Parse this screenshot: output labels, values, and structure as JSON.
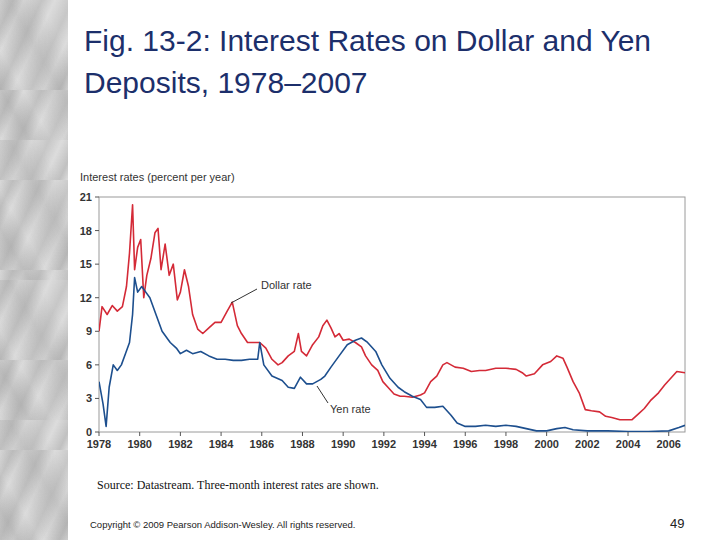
{
  "slide": {
    "title": "Fig. 13-2: Interest Rates on Dollar and Yen Deposits, 1978–2007",
    "source": "Source: Datastream. Three-month interest rates are shown.",
    "copyright": "Copyright © 2009 Pearson Addison-Wesley. All rights reserved.",
    "page_number": 49
  },
  "chart_data": {
    "type": "line",
    "y_label": "Interest rates (percent per year)",
    "xlim": [
      1978,
      2006.8
    ],
    "xticks": [
      1978,
      1980,
      1982,
      1984,
      1986,
      1988,
      1990,
      1992,
      1994,
      1996,
      1998,
      2000,
      2002,
      2004,
      2006
    ],
    "ylim": [
      0,
      21
    ],
    "yticks": [
      0,
      3,
      6,
      9,
      12,
      15,
      18,
      21
    ],
    "grid": false,
    "series": [
      {
        "name": "Dollar rate",
        "color": "#d42a37",
        "x": [
          1978.0,
          1978.15,
          1978.4,
          1978.65,
          1978.9,
          1979.15,
          1979.35,
          1979.5,
          1979.65,
          1979.75,
          1979.9,
          1980.05,
          1980.2,
          1980.35,
          1980.55,
          1980.75,
          1980.9,
          1981.05,
          1981.25,
          1981.45,
          1981.65,
          1981.85,
          1982.0,
          1982.2,
          1982.4,
          1982.6,
          1982.85,
          1983.1,
          1983.4,
          1983.7,
          1984.0,
          1984.3,
          1984.55,
          1984.8,
          1985.0,
          1985.3,
          1985.6,
          1985.9,
          1986.2,
          1986.5,
          1986.8,
          1987.0,
          1987.3,
          1987.6,
          1987.8,
          1987.95,
          1988.2,
          1988.5,
          1988.8,
          1989.0,
          1989.2,
          1989.4,
          1989.6,
          1989.8,
          1990.0,
          1990.3,
          1990.6,
          1990.9,
          1991.1,
          1991.4,
          1991.7,
          1991.95,
          1992.2,
          1992.5,
          1992.8,
          1993.0,
          1993.4,
          1993.8,
          1994.0,
          1994.3,
          1994.6,
          1994.9,
          1995.1,
          1995.5,
          1995.9,
          1996.3,
          1996.7,
          1997.0,
          1997.5,
          1998.0,
          1998.5,
          1998.8,
          1999.0,
          1999.4,
          1999.8,
          2000.2,
          2000.5,
          2000.8,
          2001.0,
          2001.3,
          2001.6,
          2001.9,
          2002.2,
          2002.6,
          2002.9,
          2003.2,
          2003.6,
          2003.9,
          2004.2,
          2004.5,
          2004.8,
          2005.1,
          2005.5,
          2005.8,
          2006.1,
          2006.4,
          2006.8
        ],
        "values": [
          9.0,
          11.2,
          10.5,
          11.3,
          10.8,
          11.2,
          13.0,
          16.0,
          20.3,
          14.5,
          16.5,
          17.2,
          12.0,
          14.0,
          15.5,
          17.8,
          18.2,
          14.5,
          16.8,
          14.0,
          15.0,
          11.8,
          12.5,
          14.5,
          13.0,
          10.5,
          9.2,
          8.8,
          9.3,
          9.8,
          9.8,
          10.8,
          11.6,
          9.5,
          8.8,
          8.0,
          8.0,
          8.0,
          7.5,
          6.5,
          6.0,
          6.2,
          6.8,
          7.2,
          8.8,
          7.2,
          6.8,
          7.8,
          8.5,
          9.5,
          10.0,
          9.3,
          8.5,
          8.8,
          8.2,
          8.3,
          8.0,
          7.6,
          6.8,
          6.0,
          5.5,
          4.5,
          4.0,
          3.4,
          3.2,
          3.2,
          3.1,
          3.3,
          3.5,
          4.5,
          5.0,
          6.0,
          6.2,
          5.8,
          5.7,
          5.4,
          5.5,
          5.5,
          5.7,
          5.7,
          5.6,
          5.3,
          5.0,
          5.2,
          6.0,
          6.3,
          6.8,
          6.6,
          5.8,
          4.5,
          3.5,
          2.0,
          1.9,
          1.8,
          1.4,
          1.3,
          1.1,
          1.1,
          1.1,
          1.6,
          2.1,
          2.8,
          3.5,
          4.2,
          4.8,
          5.4,
          5.3
        ]
      },
      {
        "name": "Yen rate",
        "color": "#1d4f8e",
        "x": [
          1978.0,
          1978.2,
          1978.35,
          1978.5,
          1978.7,
          1978.9,
          1979.1,
          1979.3,
          1979.5,
          1979.65,
          1979.75,
          1979.9,
          1980.1,
          1980.3,
          1980.5,
          1980.8,
          1981.1,
          1981.5,
          1981.8,
          1982.0,
          1982.3,
          1982.6,
          1983.0,
          1983.4,
          1983.8,
          1984.2,
          1984.6,
          1985.0,
          1985.4,
          1985.8,
          1985.9,
          1986.1,
          1986.5,
          1987.0,
          1987.3,
          1987.6,
          1987.9,
          1988.2,
          1988.5,
          1988.9,
          1989.1,
          1989.4,
          1989.8,
          1990.2,
          1990.6,
          1990.9,
          1991.2,
          1991.6,
          1991.9,
          1992.3,
          1992.7,
          1993.0,
          1993.4,
          1993.8,
          1994.1,
          1994.5,
          1994.9,
          1995.3,
          1995.6,
          1996.0,
          1996.5,
          1997.0,
          1997.5,
          1998.0,
          1998.5,
          1999.0,
          1999.5,
          2000.0,
          2000.5,
          2000.9,
          2001.3,
          2002.0,
          2003.0,
          2004.0,
          2005.0,
          2006.0,
          2006.5,
          2006.8
        ],
        "values": [
          4.5,
          2.5,
          0.5,
          4.0,
          6.0,
          5.5,
          6.0,
          7.0,
          8.0,
          10.5,
          13.8,
          12.5,
          13.0,
          12.5,
          12.0,
          10.5,
          9.0,
          8.0,
          7.5,
          7.0,
          7.3,
          7.0,
          7.2,
          6.8,
          6.5,
          6.5,
          6.4,
          6.4,
          6.5,
          6.5,
          8.0,
          6.0,
          5.0,
          4.6,
          4.0,
          3.9,
          4.9,
          4.3,
          4.3,
          4.7,
          5.0,
          5.8,
          6.8,
          7.8,
          8.2,
          8.4,
          8.0,
          7.2,
          6.0,
          4.8,
          4.0,
          3.6,
          3.2,
          2.9,
          2.2,
          2.2,
          2.3,
          1.5,
          0.8,
          0.5,
          0.5,
          0.6,
          0.5,
          0.6,
          0.5,
          0.3,
          0.1,
          0.1,
          0.3,
          0.4,
          0.2,
          0.1,
          0.1,
          0.05,
          0.05,
          0.1,
          0.4,
          0.6
        ]
      }
    ]
  }
}
